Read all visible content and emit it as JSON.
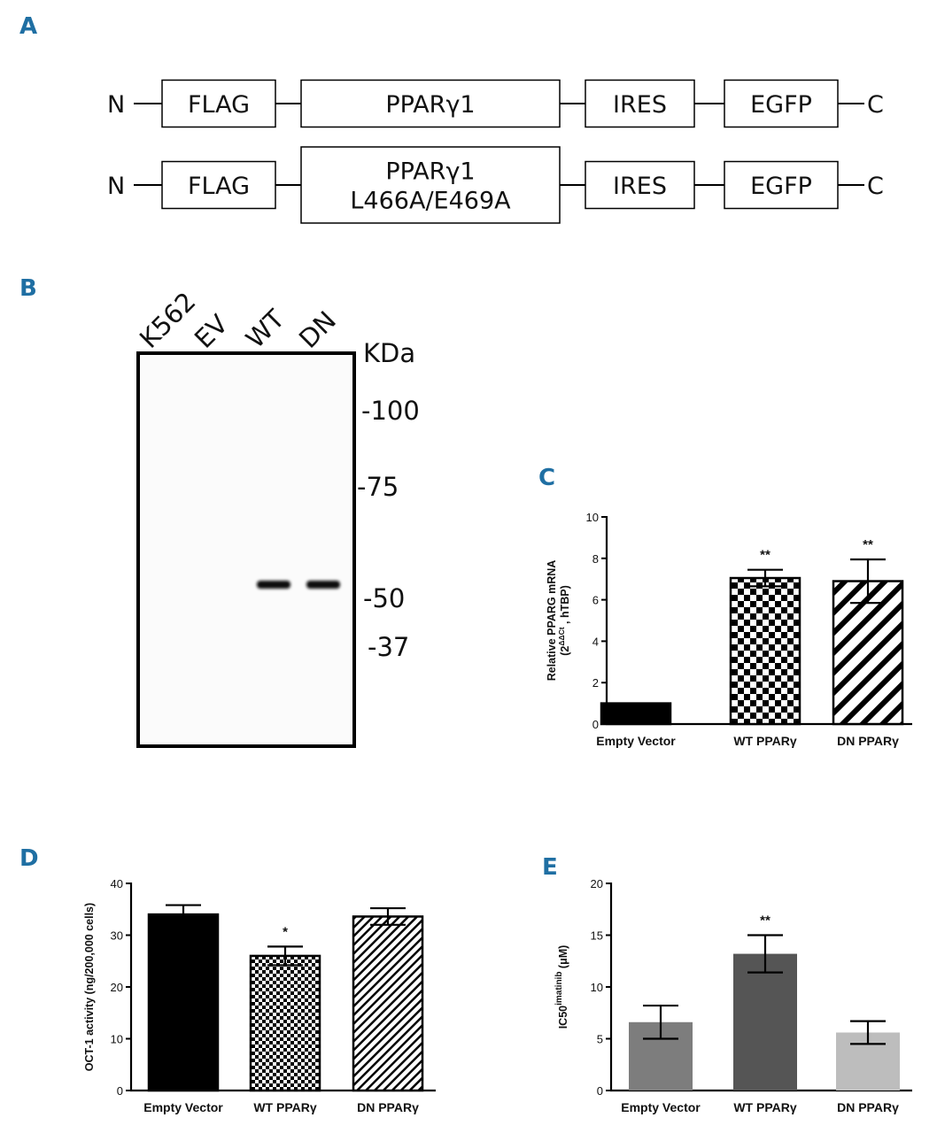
{
  "panel_a": {
    "letter": "A",
    "constructs": [
      {
        "n_label": "N",
        "c_label": "C",
        "elements": [
          {
            "lines": [
              "FLAG"
            ]
          },
          {
            "lines": [
              "PPARγ1"
            ]
          },
          {
            "lines": [
              "IRES"
            ]
          },
          {
            "lines": [
              "EGFP"
            ]
          }
        ]
      },
      {
        "n_label": "N",
        "c_label": "C",
        "elements": [
          {
            "lines": [
              "FLAG"
            ]
          },
          {
            "lines": [
              "PPARγ1",
              "L466A/E469A"
            ]
          },
          {
            "lines": [
              "IRES"
            ]
          },
          {
            "lines": [
              "EGFP"
            ]
          }
        ]
      }
    ]
  },
  "panel_b": {
    "letter": "B",
    "lanes": [
      "K562",
      "EV",
      "WT",
      "DN"
    ],
    "unit_label": "KDa",
    "markers": [
      "-100",
      "-75",
      "-50",
      "-37"
    ],
    "bands_present": [
      false,
      false,
      true,
      true
    ]
  },
  "chart_data": [
    {
      "panel": "C",
      "type": "bar",
      "categories": [
        "Empty Vector",
        "WT PPARγ",
        "DN PPARγ"
      ],
      "values": [
        1.0,
        7.05,
        6.9
      ],
      "errors": [
        0.0,
        0.4,
        1.05
      ],
      "significance": [
        "",
        "**",
        "**"
      ],
      "fills": [
        "solid-black",
        "checkerboard",
        "diagonal-wide"
      ],
      "ylabel_line1": "Relative PPARG mRNA",
      "ylabel_line2": "(2^ΔΔCt , hTBP)",
      "ylabel_line2_base": "(2",
      "ylabel_line2_sup": "ΔΔCt",
      "ylabel_line2_rest": ", hTBP)",
      "ylim": [
        0,
        10
      ],
      "yticks": [
        "0",
        "2",
        "4",
        "6",
        "8",
        "10"
      ]
    },
    {
      "panel": "D",
      "type": "bar",
      "categories": [
        "Empty Vector",
        "WT PPARγ",
        "DN PPARγ"
      ],
      "values": [
        34.0,
        26.0,
        33.6
      ],
      "errors": [
        1.8,
        1.8,
        1.6
      ],
      "significance": [
        "",
        "*",
        ""
      ],
      "fills": [
        "solid-black",
        "fine-checkerboard",
        "diagonal-fine"
      ],
      "ylabel": "OCT-1 activity (ng/200,000 cells)",
      "ylim": [
        0,
        40
      ],
      "yticks": [
        "0",
        "10",
        "20",
        "30",
        "40"
      ]
    },
    {
      "panel": "E",
      "type": "bar",
      "categories": [
        "Empty Vector",
        "WT PPARγ",
        "DN PPARγ"
      ],
      "values": [
        6.6,
        13.2,
        5.6
      ],
      "errors": [
        1.6,
        1.8,
        1.1
      ],
      "significance": [
        "",
        "**",
        ""
      ],
      "colors": [
        "#7d7d7d",
        "#555555",
        "#bdbdbd"
      ],
      "ylabel_base": "IC50",
      "ylabel_sup": "imatinib",
      "ylabel_unit": " (μM)",
      "ylim": [
        0,
        20
      ],
      "yticks": [
        "0",
        "5",
        "10",
        "15",
        "20"
      ]
    }
  ]
}
